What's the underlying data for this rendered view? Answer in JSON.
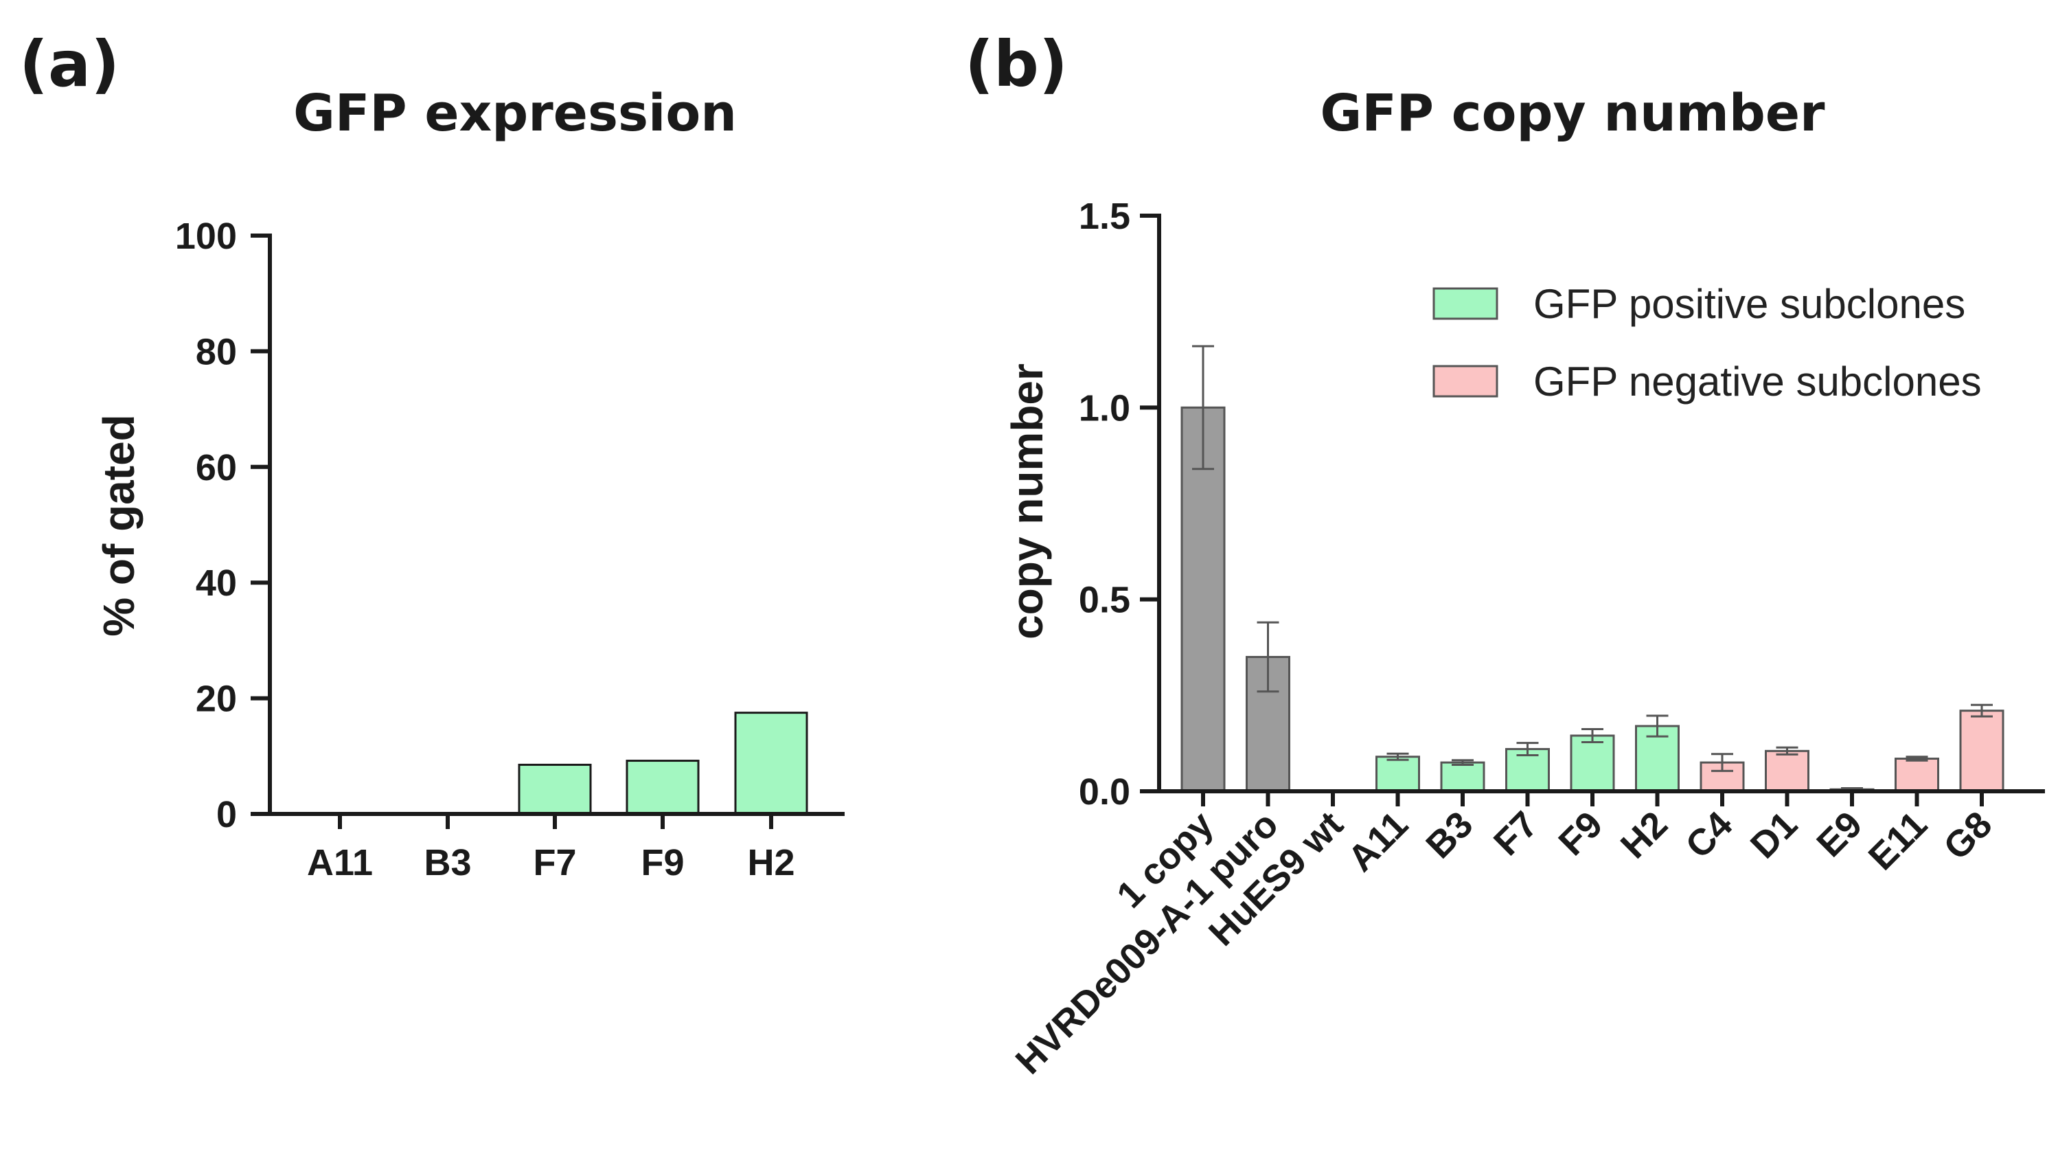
{
  "panels": {
    "a": "(a)",
    "b": "(b)"
  },
  "chart_data": [
    {
      "type": "bar",
      "title": "GFP expression",
      "xlabel": "",
      "ylabel": "% of gated",
      "ylim": [
        0,
        100
      ],
      "yticks": [
        0,
        20,
        40,
        60,
        80,
        100
      ],
      "categories": [
        "A11",
        "B3",
        "F7",
        "F9",
        "H2"
      ],
      "values": [
        0,
        0,
        8.5,
        9.2,
        17.5
      ],
      "bar_color": "#a3f7c1"
    },
    {
      "type": "bar",
      "title": "GFP copy number",
      "xlabel": "",
      "ylabel": "copy number",
      "ylim": [
        0,
        1.5
      ],
      "yticks": [
        "0.0",
        "0.5",
        "1.0",
        "1.5"
      ],
      "categories": [
        "1 copy",
        "HVRDe009-A-1 puro",
        "HuES9 wt",
        "A11",
        "B3",
        "F7",
        "F9",
        "H2",
        "C4",
        "D1",
        "E9",
        "E11",
        "G8"
      ],
      "values": [
        1.0,
        0.35,
        0.0,
        0.09,
        0.075,
        0.11,
        0.145,
        0.17,
        0.075,
        0.105,
        0.005,
        0.085,
        0.21
      ],
      "errors": [
        0.16,
        0.09,
        0.0,
        0.008,
        0.006,
        0.016,
        0.017,
        0.027,
        0.022,
        0.009,
        0.003,
        0.005,
        0.015
      ],
      "groups": [
        "control",
        "control",
        "control",
        "positive",
        "positive",
        "positive",
        "positive",
        "positive",
        "negative",
        "negative",
        "negative",
        "negative",
        "negative"
      ],
      "colors": {
        "control": "#9c9c9c",
        "positive": "#a3f7c1",
        "negative": "#fbc4c4"
      },
      "legend": [
        {
          "label": "GFP positive subclones",
          "group": "positive"
        },
        {
          "label": "GFP negative subclones",
          "group": "negative"
        }
      ],
      "legend_position": "top-right"
    }
  ]
}
